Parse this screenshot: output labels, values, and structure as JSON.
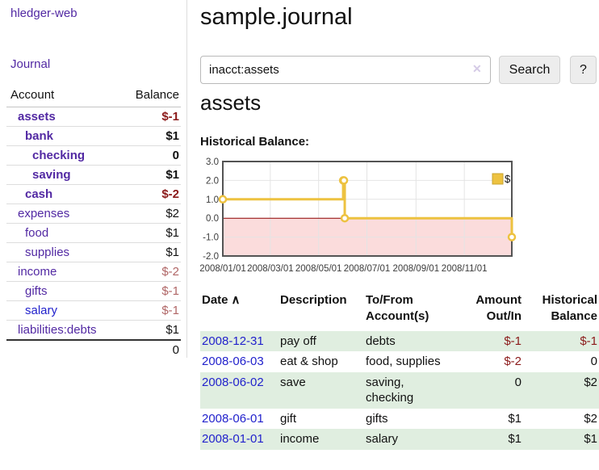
{
  "app_title": "hledger-web",
  "sidebar": {
    "journal_link": "Journal",
    "accounts_table": {
      "headers": [
        "Account",
        "Balance"
      ],
      "rows": [
        {
          "name": "assets",
          "balance": "$-1",
          "indent": 1,
          "bold": true,
          "balance_class": "negdark",
          "link_class": ""
        },
        {
          "name": "bank",
          "balance": "$1",
          "indent": 2,
          "bold": true,
          "balance_class": "pos",
          "link_class": ""
        },
        {
          "name": "checking",
          "balance": "0",
          "indent": 3,
          "bold": true,
          "balance_class": "pos",
          "link_class": ""
        },
        {
          "name": "saving",
          "balance": "$1",
          "indent": 3,
          "bold": true,
          "balance_class": "pos",
          "link_class": ""
        },
        {
          "name": "cash",
          "balance": "$-2",
          "indent": 2,
          "bold": true,
          "balance_class": "negdark",
          "link_class": ""
        },
        {
          "name": "expenses",
          "balance": "$2",
          "indent": 1,
          "bold": false,
          "balance_class": "pos",
          "link_class": ""
        },
        {
          "name": "food",
          "balance": "$1",
          "indent": 2,
          "bold": false,
          "balance_class": "pos",
          "link_class": ""
        },
        {
          "name": "supplies",
          "balance": "$1",
          "indent": 2,
          "bold": false,
          "balance_class": "pos",
          "link_class": ""
        },
        {
          "name": "income",
          "balance": "$-2",
          "indent": 1,
          "bold": false,
          "balance_class": "neglight",
          "link_class": ""
        },
        {
          "name": "gifts",
          "balance": "$-1",
          "indent": 2,
          "bold": false,
          "balance_class": "neglight",
          "link_class": ""
        },
        {
          "name": "salary",
          "balance": "$-1",
          "indent": 2,
          "bold": false,
          "balance_class": "neglight",
          "link_class": "blue"
        },
        {
          "name": "liabilities:debts",
          "balance": "$1",
          "indent": 1,
          "bold": false,
          "balance_class": "pos",
          "link_class": ""
        }
      ],
      "total": "0"
    }
  },
  "main": {
    "title": "sample.journal",
    "search": {
      "value": "inacct:assets",
      "clear_icon": "✕",
      "search_button": "Search",
      "help_button": "?"
    },
    "account_heading": "assets",
    "chart_label": "Historical Balance:",
    "register_table": {
      "columns": [
        {
          "lines": [
            "Date"
          ],
          "sort_icon": "∧",
          "align": "left"
        },
        {
          "lines": [
            "Description"
          ],
          "align": "left"
        },
        {
          "lines": [
            "To/From",
            "Account(s)"
          ],
          "align": "left"
        },
        {
          "lines": [
            "Amount",
            "Out/In"
          ],
          "align": "right"
        },
        {
          "lines": [
            "Historical",
            "Balance"
          ],
          "align": "right"
        }
      ],
      "rows": [
        {
          "date": "2008-12-31",
          "description": "pay off",
          "accounts": "debts",
          "amount": "$-1",
          "balance": "$-1"
        },
        {
          "date": "2008-06-03",
          "description": "eat & shop",
          "accounts": "food, supplies",
          "amount": "$-2",
          "balance": "0"
        },
        {
          "date": "2008-06-02",
          "description": "save",
          "accounts": "saving, checking",
          "amount": "0",
          "balance": "$2"
        },
        {
          "date": "2008-06-01",
          "description": "gift",
          "accounts": "gifts",
          "amount": "$1",
          "balance": "$2"
        },
        {
          "date": "2008-01-01",
          "description": "income",
          "accounts": "salary",
          "amount": "$1",
          "balance": "$1"
        }
      ]
    }
  },
  "chart_data": {
    "type": "line",
    "style": "step-after",
    "title": "Historical Balance:",
    "legend": [
      "$"
    ],
    "legend_position": "top-right",
    "x_range": [
      "2008-01-01",
      "2008-12-31"
    ],
    "x_ticks": [
      "2008/01/01",
      "2008/03/01",
      "2008/05/01",
      "2008/07/01",
      "2008/09/01",
      "2008/11/01"
    ],
    "y_ticks": [
      3,
      2,
      1,
      0,
      -1,
      -2
    ],
    "ylim": [
      -2,
      3
    ],
    "grid": true,
    "series": [
      {
        "name": "$",
        "color": "#edc240",
        "points": [
          [
            "2008-01-01",
            1
          ],
          [
            "2008-06-01",
            2
          ],
          [
            "2008-06-02",
            2
          ],
          [
            "2008-06-03",
            0
          ],
          [
            "2008-12-31",
            -1
          ]
        ]
      }
    ],
    "grid_color": "#e4e4e4",
    "border_color": "#545454",
    "zero_line_color": "#8b0000",
    "negative_fill": "#fbdcdc"
  },
  "colors": {
    "purple_link": "#5229a3",
    "blue_link": "#2222cc",
    "negative_dark": "#8b1a1a",
    "negative_light": "#b06666",
    "row_stripe_green": "#e0eee0",
    "series_gold": "#edc240"
  }
}
